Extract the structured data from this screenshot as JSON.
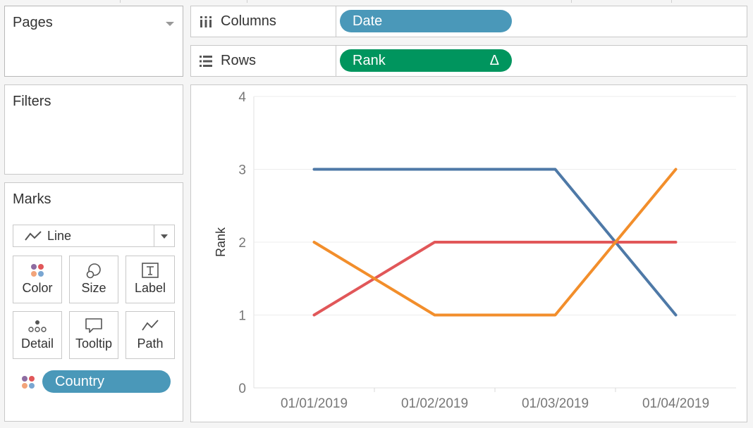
{
  "pages_card": {
    "title": "Pages"
  },
  "filters_card": {
    "title": "Filters"
  },
  "marks_card": {
    "title": "Marks",
    "mark_type": "Line",
    "buttons": [
      {
        "label": "Color",
        "icon": "color-icon"
      },
      {
        "label": "Size",
        "icon": "size-icon"
      },
      {
        "label": "Label",
        "icon": "label-icon"
      },
      {
        "label": "Detail",
        "icon": "detail-icon"
      },
      {
        "label": "Tooltip",
        "icon": "tooltip-icon"
      },
      {
        "label": "Path",
        "icon": "path-icon"
      }
    ],
    "color_field": "Country"
  },
  "shelves": {
    "columns": {
      "label": "Columns",
      "pill": "Date"
    },
    "rows": {
      "label": "Rows",
      "pill": "Rank",
      "pill_badge": "Δ"
    }
  },
  "colors": {
    "pill_blue": "#4a98b9",
    "pill_green": "#00955e",
    "series_blue": "#4e79a7",
    "series_red": "#e15759",
    "series_orange": "#f28e2b"
  },
  "chart_data": {
    "type": "line",
    "x": [
      "01/01/2019",
      "01/02/2019",
      "01/03/2019",
      "01/04/2019"
    ],
    "ylabel": "Rank",
    "xlabel": "",
    "ylim": [
      0,
      4
    ],
    "yticks": [
      "0",
      "1",
      "2",
      "3",
      "4"
    ],
    "grid": true,
    "series": [
      {
        "values": [
          3,
          3,
          3,
          1
        ],
        "color": "#4e79a7"
      },
      {
        "values": [
          1,
          2,
          2,
          2
        ],
        "color": "#e15759"
      },
      {
        "values": [
          2,
          1,
          1,
          3
        ],
        "color": "#f28e2b"
      }
    ]
  }
}
